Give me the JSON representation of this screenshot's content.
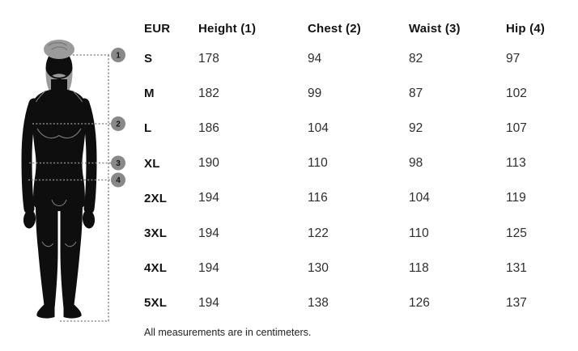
{
  "chart_data": {
    "type": "table",
    "columns": [
      "EUR",
      "Height (1)",
      "Chest (2)",
      "Waist (3)",
      "Hip (4)"
    ],
    "rows": [
      [
        "S",
        "178",
        "94",
        "82",
        "97"
      ],
      [
        "M",
        "182",
        "99",
        "87",
        "102"
      ],
      [
        "L",
        "186",
        "104",
        "92",
        "107"
      ],
      [
        "XL",
        "190",
        "110",
        "98",
        "113"
      ],
      [
        "2XL",
        "194",
        "116",
        "104",
        "119"
      ],
      [
        "3XL",
        "194",
        "122",
        "110",
        "125"
      ],
      [
        "4XL",
        "194",
        "130",
        "118",
        "131"
      ],
      [
        "5XL",
        "194",
        "138",
        "126",
        "137"
      ]
    ],
    "note": "All measurements are in centimeters.",
    "units": "centimeters"
  },
  "figure": {
    "markers": [
      {
        "number": "1"
      },
      {
        "number": "2"
      },
      {
        "number": "3"
      },
      {
        "number": "4"
      }
    ],
    "colors": {
      "body": "#0e0e0e",
      "hair": "#9b9b9b",
      "swirl": "#7c7c7c",
      "detail": "#8f8f8f",
      "dotted": "#8a8a8a",
      "marker": "#898989"
    }
  }
}
